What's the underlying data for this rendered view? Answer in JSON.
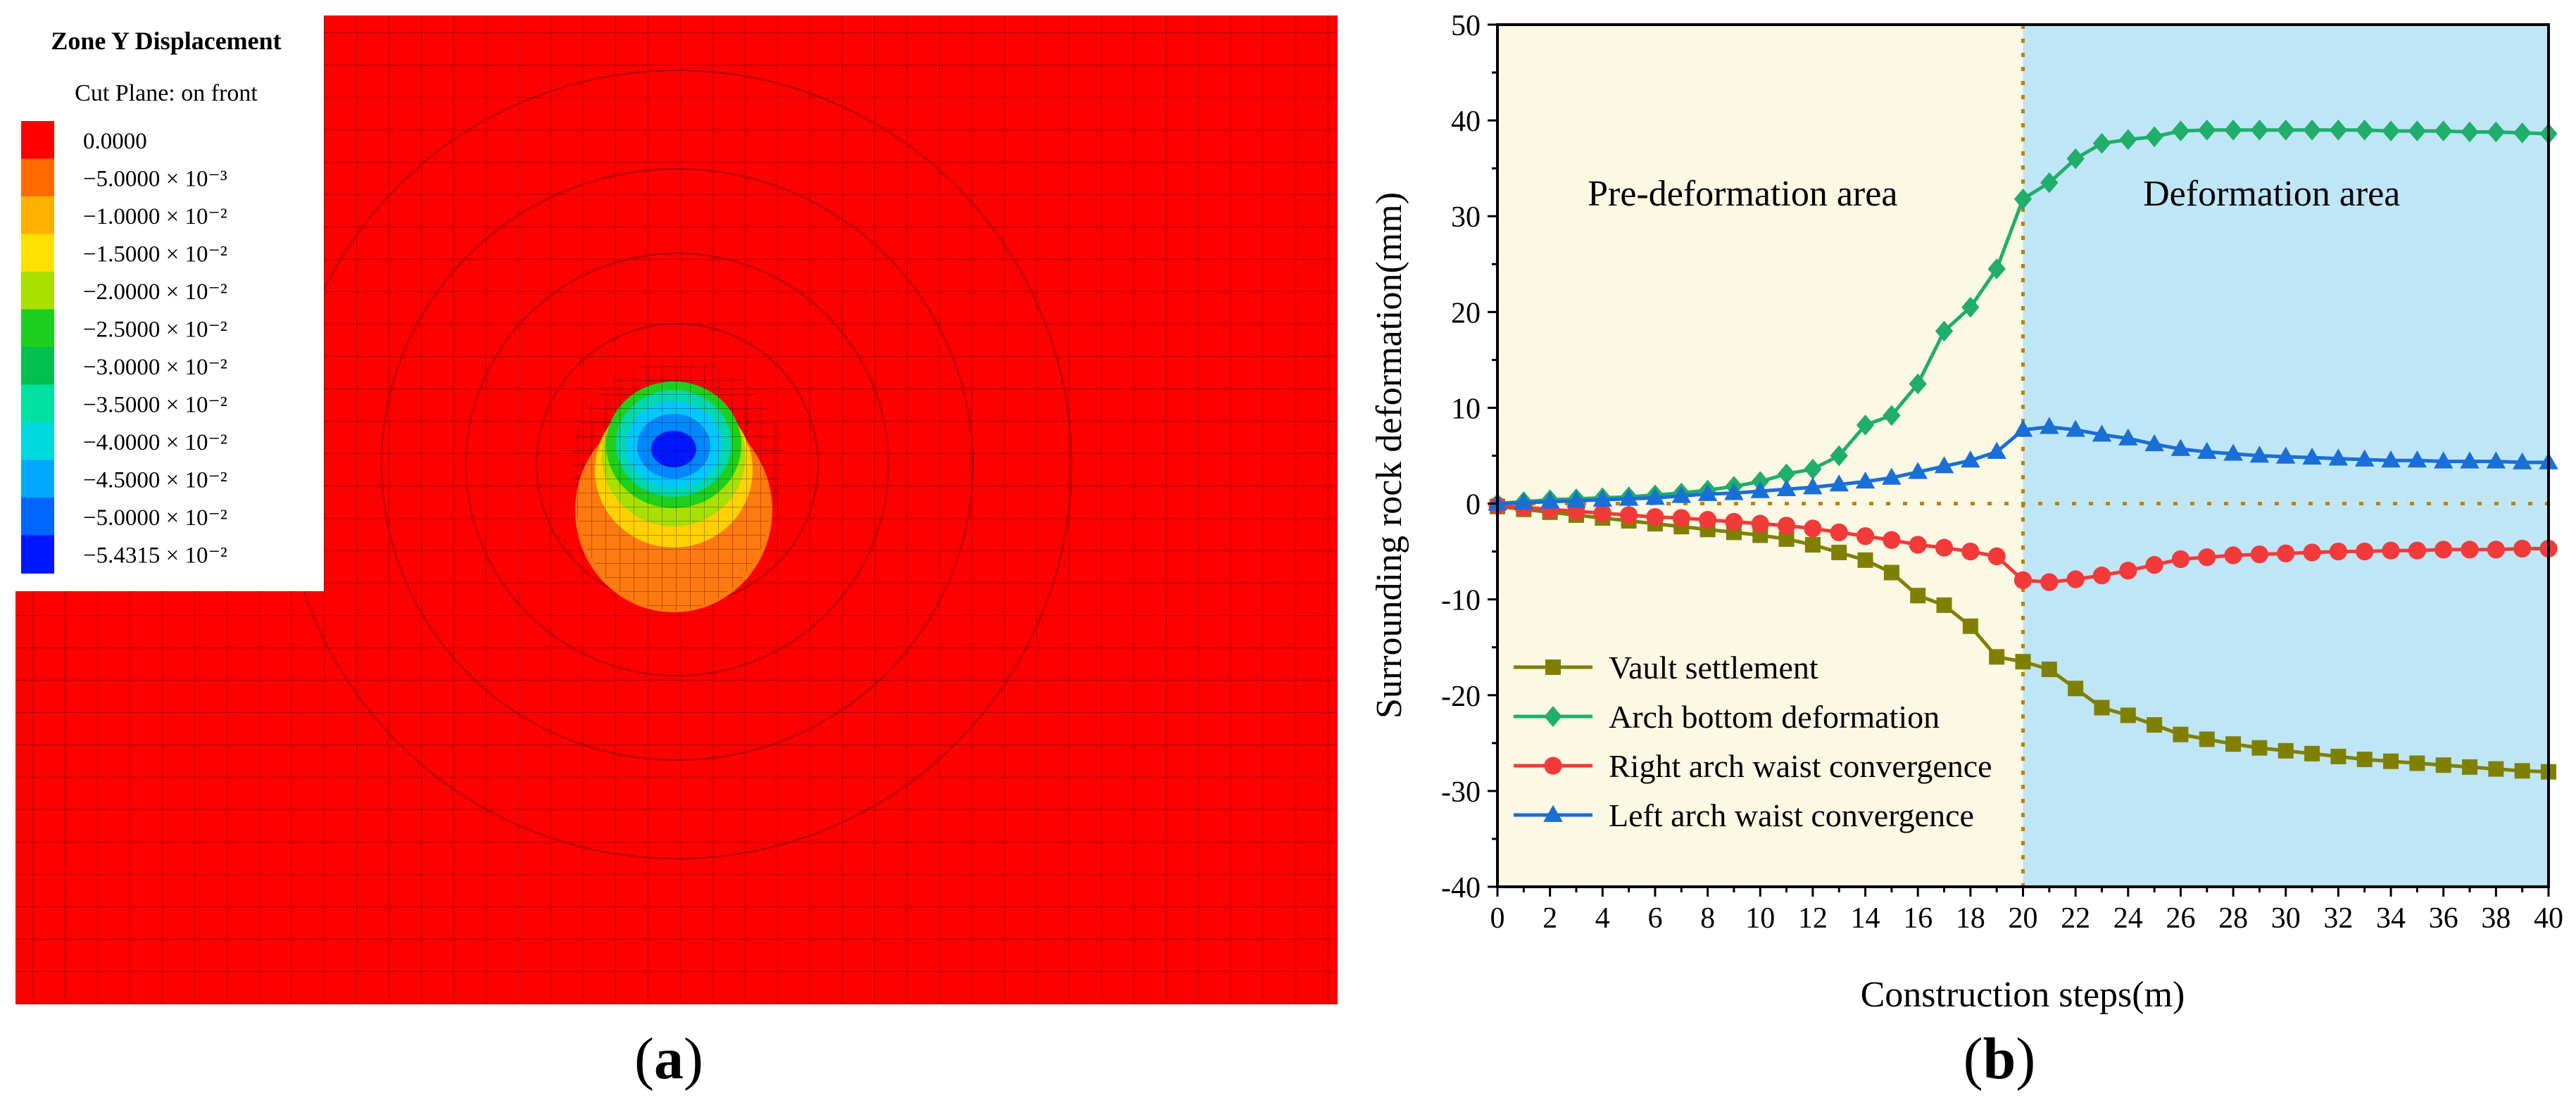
{
  "panel_a": {
    "label_open": "(",
    "label_letter": "a",
    "label_close": ")",
    "legend_title": "Zone Y Displacement",
    "legend_subtitle": "Cut Plane: on front",
    "legend_entries": [
      {
        "value": "0.0000",
        "color": "#ff0000"
      },
      {
        "value": "−5.0000 × 10⁻³",
        "color": "#ff6a00"
      },
      {
        "value": "−1.0000 × 10⁻²",
        "color": "#ffb000"
      },
      {
        "value": "−1.5000 × 10⁻²",
        "color": "#ffe000"
      },
      {
        "value": "−2.0000 × 10⁻²",
        "color": "#a8e000"
      },
      {
        "value": "−2.5000 × 10⁻²",
        "color": "#1ed01e"
      },
      {
        "value": "−3.0000 × 10⁻²",
        "color": "#00c050"
      },
      {
        "value": "−3.5000 × 10⁻²",
        "color": "#00e0a0"
      },
      {
        "value": "−4.0000 × 10⁻²",
        "color": "#00d8e0"
      },
      {
        "value": "−4.5000 × 10⁻²",
        "color": "#00a8ff"
      },
      {
        "value": "−5.0000 × 10⁻²",
        "color": "#0066ff"
      },
      {
        "value": "−5.4315 × 10⁻²",
        "color": "#0018ff"
      }
    ]
  },
  "panel_b": {
    "label_open": "(",
    "label_letter": "b",
    "label_close": ")"
  },
  "chart_data": {
    "type": "line",
    "title": "",
    "xlabel": "Construction steps(m)",
    "ylabel": "Surrounding rock deformation(mm)",
    "xlim": [
      0,
      40
    ],
    "ylim": [
      -40,
      50
    ],
    "xticks": [
      0,
      2,
      4,
      6,
      8,
      10,
      12,
      14,
      16,
      18,
      20,
      22,
      24,
      26,
      28,
      30,
      32,
      34,
      36,
      38,
      40
    ],
    "yticks": [
      -40,
      -30,
      -20,
      -10,
      0,
      10,
      20,
      30,
      40,
      50
    ],
    "regions": [
      {
        "label": "Pre-deformation area",
        "x_from": 0,
        "x_to": 20,
        "color": "#fbf8e4"
      },
      {
        "label": "Deformation area",
        "x_from": 20,
        "x_to": 40,
        "color": "#bfe6f6"
      }
    ],
    "reference_lines": {
      "vertical_x": 20,
      "horizontal_y": 0,
      "color": "#c08000"
    },
    "legend_position": "bottom-left",
    "x": [
      0,
      1,
      2,
      3,
      4,
      5,
      6,
      7,
      8,
      9,
      10,
      11,
      12,
      13,
      14,
      15,
      16,
      17,
      18,
      19,
      20,
      21,
      22,
      23,
      24,
      25,
      26,
      27,
      28,
      29,
      30,
      31,
      32,
      33,
      34,
      35,
      36,
      37,
      38,
      39,
      40
    ],
    "series": [
      {
        "name": "Vault settlement",
        "color": "#808000",
        "marker": "square",
        "values": [
          -0.3,
          -0.6,
          -0.9,
          -1.2,
          -1.5,
          -1.8,
          -2.1,
          -2.4,
          -2.7,
          -3.0,
          -3.3,
          -3.7,
          -4.3,
          -5.1,
          -5.9,
          -7.2,
          -9.6,
          -10.6,
          -12.8,
          -16.0,
          -16.5,
          -17.3,
          -19.3,
          -21.3,
          -22.1,
          -23.1,
          -24.1,
          -24.6,
          -25.1,
          -25.5,
          -25.8,
          -26.1,
          -26.4,
          -26.7,
          -26.9,
          -27.1,
          -27.3,
          -27.5,
          -27.7,
          -27.9,
          -28.0
        ]
      },
      {
        "name": "Arch bottom deformation",
        "color": "#1fae6b",
        "marker": "diamond",
        "values": [
          0.0,
          0.2,
          0.4,
          0.5,
          0.6,
          0.7,
          0.9,
          1.1,
          1.4,
          1.8,
          2.3,
          3.1,
          3.6,
          5.0,
          8.2,
          9.2,
          12.5,
          18.0,
          20.5,
          24.5,
          31.8,
          33.5,
          36.0,
          37.6,
          38.0,
          38.3,
          38.9,
          39.0,
          39.0,
          39.0,
          39.0,
          39.0,
          39.0,
          39.0,
          38.9,
          38.9,
          38.9,
          38.8,
          38.8,
          38.7,
          38.6
        ]
      },
      {
        "name": "Right arch waist convergence",
        "color": "#f23a3a",
        "marker": "circle",
        "values": [
          -0.2,
          -0.4,
          -0.6,
          -0.8,
          -1.0,
          -1.2,
          -1.4,
          -1.5,
          -1.7,
          -1.9,
          -2.1,
          -2.3,
          -2.6,
          -3.0,
          -3.4,
          -3.8,
          -4.3,
          -4.6,
          -5.0,
          -5.5,
          -8.0,
          -8.2,
          -7.9,
          -7.5,
          -7.0,
          -6.4,
          -5.8,
          -5.6,
          -5.4,
          -5.3,
          -5.2,
          -5.1,
          -5.0,
          -5.0,
          -4.9,
          -4.9,
          -4.8,
          -4.8,
          -4.8,
          -4.7,
          -4.7
        ]
      },
      {
        "name": "Left arch waist convergence",
        "color": "#1a6fd6",
        "marker": "triangle",
        "values": [
          0.0,
          0.1,
          0.2,
          0.3,
          0.4,
          0.5,
          0.6,
          0.8,
          1.0,
          1.1,
          1.3,
          1.5,
          1.7,
          2.0,
          2.3,
          2.7,
          3.3,
          3.9,
          4.5,
          5.4,
          7.7,
          8.0,
          7.7,
          7.2,
          6.8,
          6.2,
          5.7,
          5.4,
          5.2,
          5.0,
          4.9,
          4.8,
          4.7,
          4.6,
          4.5,
          4.5,
          4.4,
          4.4,
          4.4,
          4.3,
          4.3
        ]
      }
    ]
  }
}
